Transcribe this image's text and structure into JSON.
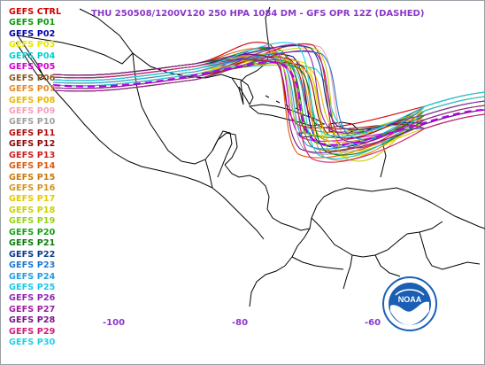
{
  "title": "THU 250508/1200V120  250 HPA 1084 DM - GFS OPR 12Z (DASHED)",
  "legend": [
    {
      "label": "GEFS CTRL",
      "color": "#d40000"
    },
    {
      "label": "GEFS P01",
      "color": "#0a9a0a"
    },
    {
      "label": "GEFS P02",
      "color": "#0000aa"
    },
    {
      "label": "GEFS P03",
      "color": "#e6e600"
    },
    {
      "label": "GEFS P04",
      "color": "#00d2d2"
    },
    {
      "label": "GEFS P05",
      "color": "#d400d4"
    },
    {
      "label": "GEFS P06",
      "color": "#8a5a1e"
    },
    {
      "label": "GEFS P07",
      "color": "#e58a2a"
    },
    {
      "label": "GEFS P08",
      "color": "#e8b800"
    },
    {
      "label": "GEFS P09",
      "color": "#f2a0b8"
    },
    {
      "label": "GEFS P10",
      "color": "#a0a0a0"
    },
    {
      "label": "GEFS P11",
      "color": "#b21010"
    },
    {
      "label": "GEFS P12",
      "color": "#8a0a0a"
    },
    {
      "label": "GEFS P13",
      "color": "#d02020"
    },
    {
      "label": "GEFS P14",
      "color": "#e05a10"
    },
    {
      "label": "GEFS P15",
      "color": "#c87a10"
    },
    {
      "label": "GEFS P16",
      "color": "#d2961e"
    },
    {
      "label": "GEFS P17",
      "color": "#e6c800"
    },
    {
      "label": "GEFS P18",
      "color": "#c8d200"
    },
    {
      "label": "GEFS P19",
      "color": "#96d21e"
    },
    {
      "label": "GEFS P20",
      "color": "#14a014"
    },
    {
      "label": "GEFS P21",
      "color": "#0a7a0a"
    },
    {
      "label": "GEFS P22",
      "color": "#0a3c8c"
    },
    {
      "label": "GEFS P23",
      "color": "#1e78d2"
    },
    {
      "label": "GEFS P24",
      "color": "#1e9ee6"
    },
    {
      "label": "GEFS P25",
      "color": "#1ec8e6"
    },
    {
      "label": "GEFS P26",
      "color": "#8c28b4"
    },
    {
      "label": "GEFS P27",
      "color": "#a01ea0"
    },
    {
      "label": "GEFS P28",
      "color": "#7a148c"
    },
    {
      "label": "GEFS P29",
      "color": "#d21e78"
    },
    {
      "label": "GEFS P30",
      "color": "#1ed2e6"
    }
  ],
  "x_ticks": [
    "-100",
    "-80",
    "-60"
  ],
  "operational_color": "#b400e6",
  "coastline_color": "#000000",
  "logo": {
    "text": "NOAA",
    "color": "#1a5fb4"
  }
}
